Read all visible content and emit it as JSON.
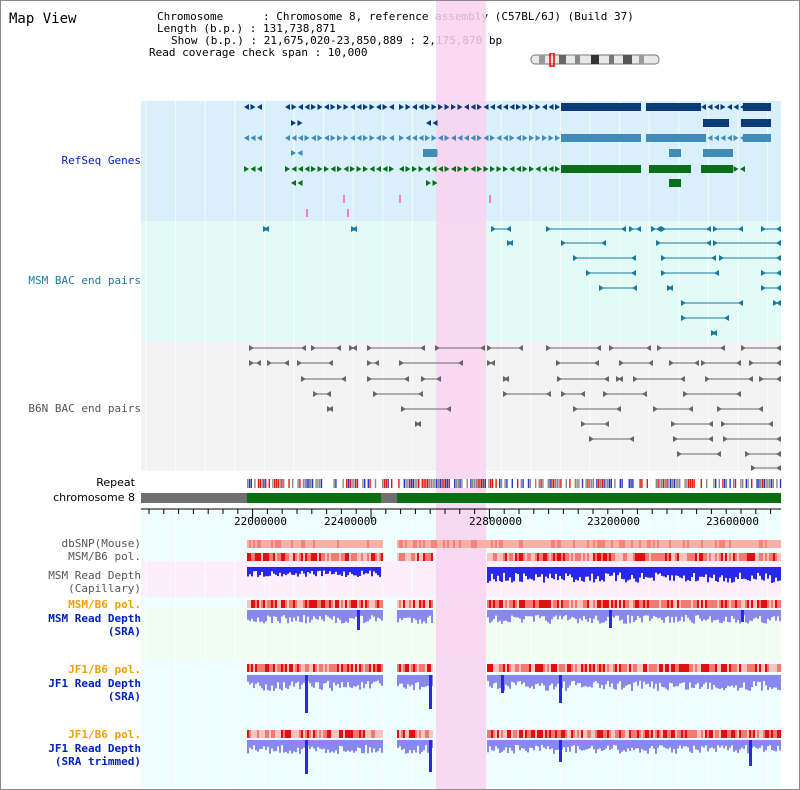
{
  "app": {
    "title": "Map View"
  },
  "info": {
    "line1": "Chromosome      : Chromosome 8, reference assembly (C57BL/6J) (Build 37)",
    "line2": "Length (b.p.) : 131,738,871",
    "line3": "Show (b.p.) : 21,675,020-23,850,889 : 2,175,870 bp",
    "line4": "Read coverage check span : 10,000"
  },
  "tracks": {
    "refseq": "RefSeq Genes",
    "msm_bac": "MSM BAC end pairs",
    "b6n_bac": "B6N BAC end pairs",
    "repeat": "Repeat",
    "chromosome": "chromosome 8",
    "dbsnp": "dbSNP(Mouse)",
    "msm_b6_pol_1": "MSM/B6 pol.",
    "msm_depth_cap_1": "MSM Read Depth",
    "msm_depth_cap_2": "(Capillary)",
    "msm_b6_pol_2": "MSM/B6 pol.",
    "msm_depth_sra_1": "MSM Read Depth",
    "msm_depth_sra_2": "(SRA)",
    "jf1_b6_pol_1": "JF1/B6 pol.",
    "jf1_depth_sra_1": "JF1 Read Depth",
    "jf1_depth_sra_2": "(SRA)",
    "jf1_b6_pol_2": "JF1/B6 pol.",
    "jf1_depth_trim_1": "JF1 Read Depth",
    "jf1_depth_trim_2": "(SRA trimmed)"
  },
  "axis": {
    "ticks": [
      "22000000",
      "22400000",
      "22800000",
      "23200000",
      "23600000"
    ]
  },
  "colors": {
    "refseq_bg": "#d9f0fa",
    "msm_bg": "#e3fbf7",
    "b6n_bg": "#f3f3f3",
    "highlight": "#f9d2f0",
    "gene_dark": "#0c3b78",
    "gene_mid": "#3f8cb8",
    "gene_green": "#0a6e1b",
    "bac_teal": "#187a9e",
    "bac_gray": "#666666",
    "chrom_green": "#0b6e12",
    "chrom_gray": "#6f6f6f",
    "depth_blue": "#2727ee",
    "depth_light": "#8888f0",
    "pol_red": "#ee2222",
    "pol_orange": "#f0a000",
    "label_blue": "#0022bb"
  }
}
